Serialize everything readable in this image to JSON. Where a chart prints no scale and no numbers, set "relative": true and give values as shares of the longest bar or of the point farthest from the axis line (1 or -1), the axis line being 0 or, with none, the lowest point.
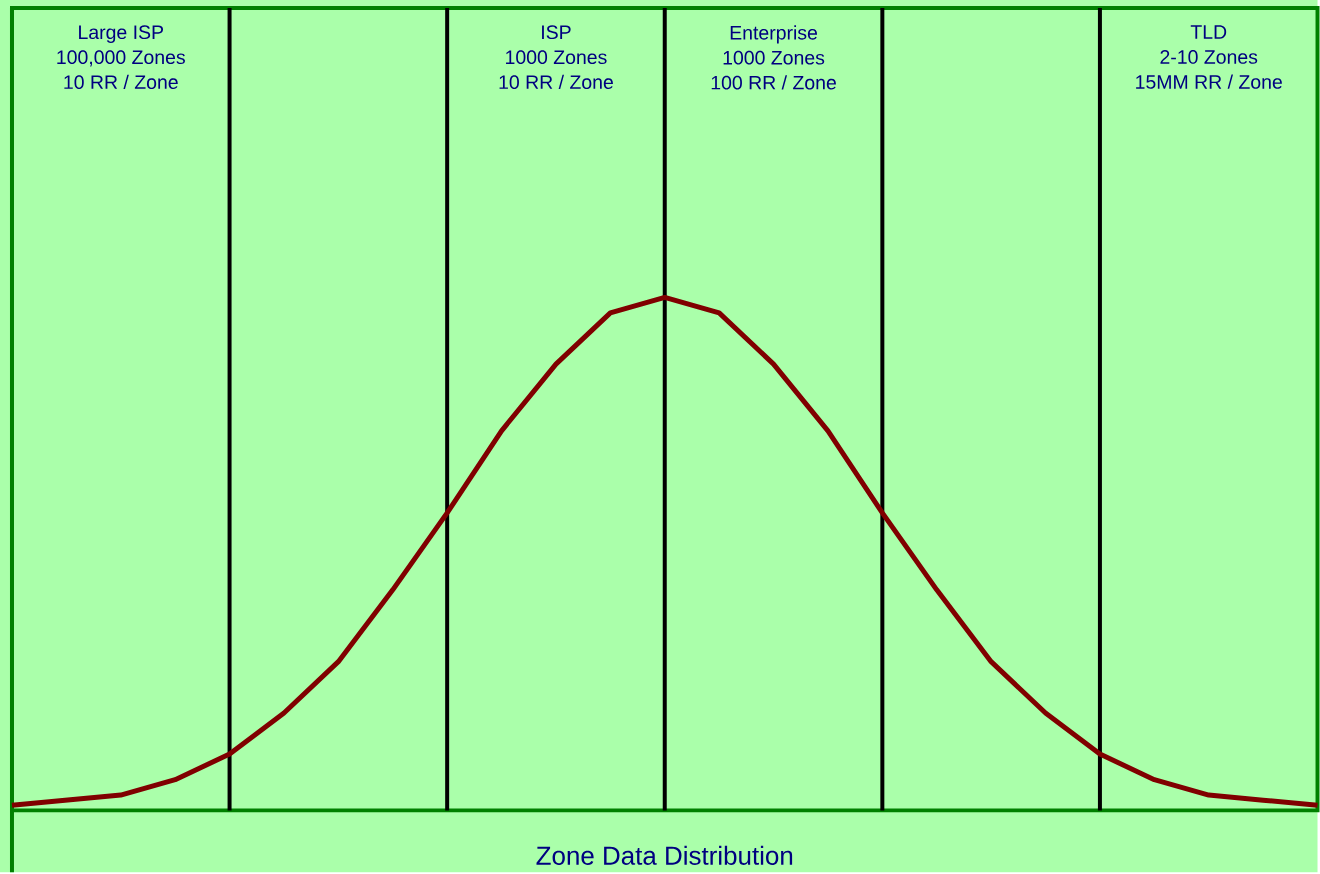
{
  "chart_data": {
    "type": "line",
    "relative": true,
    "xlabel": "Zone Data Distribution",
    "categories": [
      null,
      null,
      null,
      null,
      null,
      null,
      null,
      null,
      null,
      null,
      null,
      null,
      null,
      null,
      null,
      null,
      null,
      null,
      null,
      null,
      null,
      null,
      null,
      null,
      null
    ],
    "series": [
      {
        "color": "#800000",
        "values": [
          0.01,
          0.02,
          0.03,
          0.06,
          0.11,
          0.19,
          0.29,
          0.43,
          0.58,
          0.74,
          0.87,
          0.97,
          1,
          0.97,
          0.87,
          0.74,
          0.58,
          0.43,
          0.29,
          0.19,
          0.11,
          0.06,
          0.03,
          0.02,
          0.01
        ]
      }
    ],
    "grid": "x",
    "annotations": [
      "Large ISP",
      "100,000 Zones",
      "10 RR / Zone",
      "ISP",
      "1000 Zones",
      "10 RR / Zone",
      "Enterprise",
      "1000 Zones",
      "100 RR / Zone",
      "TLD",
      "2-10 Zones",
      "15MM RR / Zone"
    ]
  }
}
